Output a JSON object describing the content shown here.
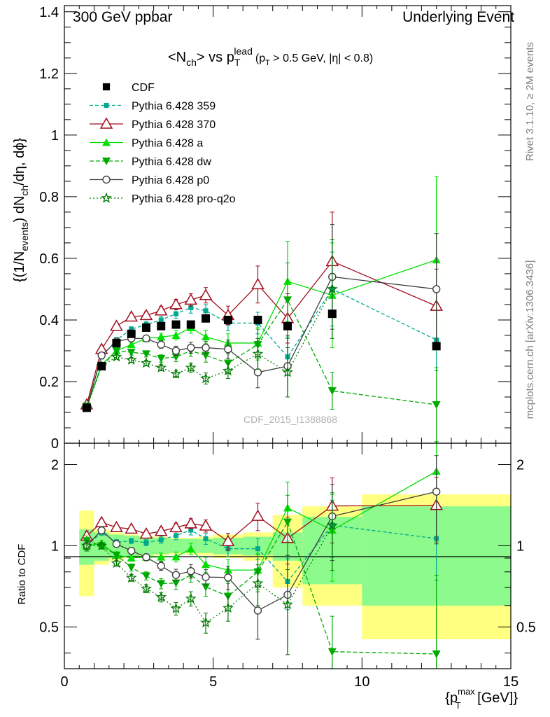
{
  "header": {
    "left": "300 GeV ppbar",
    "right": "Underlying Event"
  },
  "side_labels": {
    "rivet": "Rivet 3.1.10, ≥ 2M events",
    "mcplots": "mcplots.cern.ch [arXiv:1306.3436]"
  },
  "watermark": "CDF_2015_I1388868",
  "title": {
    "main": "<N",
    "sub1": "ch",
    "mid": "> vs p",
    "sub2": "T",
    "sup2": "lead",
    "cut": "(p",
    "cut_sub": "T",
    "cut_rest": " > 0.5 GeV, |η| < 0.8)"
  },
  "ylabel": {
    "a": "{(1/N",
    "a_sub": "events",
    "b": ") dN",
    "b_sub": "ch",
    "c": "/dη, dϕ}"
  },
  "ratio_ylabel": "Ratio to CDF",
  "xlabel": {
    "a": "{p",
    "a_sup": "max",
    "a_sub": "T",
    "b": " [GeV]}"
  },
  "chart_data": {
    "type": "line",
    "x_axis": {
      "range": [
        0,
        15
      ],
      "ticks": [
        "0",
        "5",
        "10",
        "15"
      ]
    },
    "main_y_axis": {
      "range": [
        0,
        1.42
      ],
      "ticks": [
        "0",
        "0.2",
        "0.4",
        "0.6",
        "0.8",
        "1",
        "1.2",
        "1.4"
      ]
    },
    "ratio_y_axis": {
      "range": [
        0.35,
        2.4
      ],
      "ticks": [
        "0.5",
        "1",
        "2"
      ],
      "scale": "log"
    },
    "x": [
      0.75,
      1.25,
      1.75,
      2.25,
      2.75,
      3.25,
      3.75,
      4.25,
      4.75,
      5.5,
      6.5,
      7.5,
      9.0,
      12.5
    ],
    "bin_edges": [
      0.5,
      1.0,
      1.5,
      2.0,
      2.5,
      3.0,
      3.5,
      4.0,
      4.5,
      5.0,
      6.0,
      7.0,
      8.0,
      10.0,
      15.0
    ],
    "data": {
      "name": "CDF",
      "color": "#000000",
      "values": [
        0.115,
        0.25,
        0.325,
        0.355,
        0.375,
        0.38,
        0.385,
        0.385,
        0.405,
        0.4,
        0.4,
        0.38,
        0.42,
        0.315
      ],
      "band_inner": [
        0.15,
        0.12,
        0.1,
        0.09,
        0.08,
        0.07,
        0.06,
        0.06,
        0.06,
        0.07,
        0.08,
        0.12,
        0.28,
        0.4
      ],
      "band_outer": [
        0.35,
        0.15,
        0.12,
        0.1,
        0.09,
        0.08,
        0.07,
        0.07,
        0.08,
        0.1,
        0.12,
        0.3,
        0.4,
        0.55
      ]
    },
    "series": [
      {
        "name": "Pythia 6.428 359",
        "color": "#00a88f",
        "dash": "5,3",
        "marker": "square-small",
        "values": [
          0.115,
          0.28,
          0.335,
          0.37,
          0.385,
          0.4,
          0.42,
          0.44,
          0.43,
          0.39,
          0.39,
          0.28,
          0.5,
          0.335
        ],
        "errors": [
          0.005,
          0.007,
          0.008,
          0.008,
          0.01,
          0.012,
          0.015,
          0.018,
          0.02,
          0.025,
          0.035,
          0.06,
          0.12,
          0.1
        ]
      },
      {
        "name": "Pythia 6.428 370",
        "color": "#a00e1e",
        "dash": "",
        "marker": "triangle-up-open",
        "values": [
          0.125,
          0.305,
          0.38,
          0.41,
          0.415,
          0.43,
          0.45,
          0.465,
          0.48,
          0.415,
          0.515,
          0.405,
          0.59,
          0.445
        ],
        "errors": [
          0.005,
          0.008,
          0.01,
          0.01,
          0.012,
          0.014,
          0.017,
          0.02,
          0.025,
          0.03,
          0.06,
          0.08,
          0.16,
          0.12
        ]
      },
      {
        "name": "Pythia 6.428 a",
        "color": "#00e000",
        "dash": "",
        "marker": "triangle-up",
        "values": [
          0.115,
          0.255,
          0.3,
          0.32,
          0.34,
          0.345,
          0.35,
          0.375,
          0.345,
          0.325,
          0.325,
          0.525,
          0.48,
          0.595
        ],
        "errors": [
          0.005,
          0.007,
          0.008,
          0.009,
          0.01,
          0.012,
          0.015,
          0.018,
          0.022,
          0.03,
          0.05,
          0.13,
          0.17,
          0.27
        ]
      },
      {
        "name": "Pythia 6.428 dw",
        "color": "#00aa00",
        "dash": "6,3",
        "marker": "triangle-down",
        "values": [
          0.12,
          0.25,
          0.3,
          0.295,
          0.29,
          0.275,
          0.28,
          0.3,
          0.285,
          0.26,
          0.32,
          0.465,
          0.17,
          0.125
        ],
        "errors": [
          0.005,
          0.007,
          0.008,
          0.009,
          0.01,
          0.012,
          0.015,
          0.018,
          0.022,
          0.03,
          0.05,
          0.12,
          0.06,
          0.12
        ]
      },
      {
        "name": "Pythia 6.428 p0",
        "color": "#404040",
        "dash": "",
        "marker": "circle-open",
        "values": [
          0.115,
          0.285,
          0.33,
          0.34,
          0.34,
          0.32,
          0.3,
          0.31,
          0.31,
          0.305,
          0.23,
          0.25,
          0.54,
          0.5
        ],
        "errors": [
          0.005,
          0.007,
          0.008,
          0.009,
          0.01,
          0.012,
          0.015,
          0.018,
          0.02,
          0.03,
          0.05,
          0.1,
          0.17,
          0.18
        ]
      },
      {
        "name": "Pythia 6.428 pro-q2o",
        "color": "#007a00",
        "dash": "2,3",
        "marker": "star",
        "values": [
          0.115,
          0.25,
          0.28,
          0.27,
          0.26,
          0.245,
          0.225,
          0.245,
          0.21,
          0.235,
          0.29,
          0.23,
          0.5,
          0.0
        ],
        "errors": [
          0.005,
          0.006,
          0.007,
          0.008,
          0.009,
          0.01,
          0.012,
          0.015,
          0.018,
          0.025,
          0.05,
          0.08,
          0.16,
          0.0
        ]
      }
    ]
  }
}
